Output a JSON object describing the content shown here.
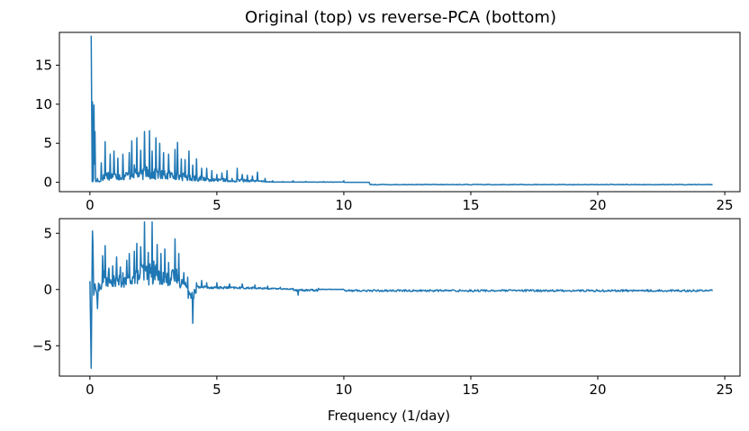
{
  "figure": {
    "title": "Original (top) vs reverse-PCA (bottom)"
  },
  "chart_data": [
    {
      "type": "line",
      "title": "Original (top) vs reverse-PCA (bottom)",
      "xlabel": "",
      "ylabel": "",
      "xlim": [
        -1.2,
        25.6
      ],
      "ylim": [
        -1.2,
        19.2
      ],
      "x_ticks": [
        0,
        5,
        10,
        15,
        20,
        25
      ],
      "y_ticks": [
        0,
        5,
        10,
        15
      ],
      "grid": false,
      "legend": "none",
      "color": "#1f77b4",
      "x_range": [
        0,
        24.5
      ],
      "series": [
        {
          "peaks": [
            [
              0.05,
              18.7
            ],
            [
              0.09,
              0.1
            ],
            [
              0.1,
              10.3
            ],
            [
              0.14,
              0.5
            ],
            [
              0.16,
              9.9
            ],
            [
              0.2,
              6.5
            ],
            [
              0.3,
              0.5
            ],
            [
              0.45,
              2.5
            ],
            [
              0.6,
              5.2
            ],
            [
              0.8,
              3.6
            ],
            [
              0.95,
              4.0
            ],
            [
              1.1,
              3.1
            ],
            [
              1.3,
              3.6
            ],
            [
              1.55,
              3.8
            ],
            [
              1.65,
              5.3
            ],
            [
              1.85,
              5.7
            ],
            [
              2.0,
              4.1
            ],
            [
              2.15,
              6.5
            ],
            [
              2.35,
              6.6
            ],
            [
              2.45,
              4.0
            ],
            [
              2.6,
              5.7
            ],
            [
              2.75,
              5.0
            ],
            [
              2.9,
              3.8
            ],
            [
              3.1,
              3.6
            ],
            [
              3.35,
              4.2
            ],
            [
              3.45,
              5.1
            ],
            [
              3.6,
              3.0
            ],
            [
              3.75,
              2.9
            ],
            [
              3.9,
              4.0
            ],
            [
              4.05,
              2.2
            ],
            [
              4.2,
              3.0
            ],
            [
              4.4,
              1.8
            ],
            [
              4.6,
              1.8
            ],
            [
              4.8,
              1.5
            ],
            [
              5.0,
              1.0
            ],
            [
              5.2,
              1.2
            ],
            [
              5.4,
              1.5
            ],
            [
              5.6,
              0.5
            ],
            [
              5.8,
              1.8
            ],
            [
              6.0,
              1.0
            ],
            [
              6.2,
              0.9
            ],
            [
              6.4,
              0.8
            ],
            [
              6.6,
              1.3
            ],
            [
              6.9,
              0.5
            ],
            [
              7.2,
              0.2
            ],
            [
              7.6,
              0.1
            ],
            [
              8.0,
              0.2
            ],
            [
              8.5,
              0.1
            ],
            [
              9.2,
              0.1
            ],
            [
              10.0,
              0.2
            ],
            [
              11.0,
              0.0
            ]
          ],
          "tail_value": -0.3
        }
      ]
    },
    {
      "type": "line",
      "title": "",
      "xlabel": "Frequency (1/day)",
      "ylabel": "",
      "xlim": [
        -1.2,
        25.6
      ],
      "ylim": [
        -7.7,
        6.3
      ],
      "x_ticks": [
        0,
        5,
        10,
        15,
        20,
        25
      ],
      "y_ticks": [
        -5,
        0,
        5
      ],
      "grid": false,
      "legend": "none",
      "color": "#1f77b4",
      "x_range": [
        0,
        24.5
      ],
      "series": [
        {
          "peaks": [
            [
              0.0,
              0.7
            ],
            [
              0.02,
              -2.0
            ],
            [
              0.05,
              -7.0
            ],
            [
              0.08,
              0.4
            ],
            [
              0.1,
              5.2
            ],
            [
              0.12,
              4.2
            ],
            [
              0.15,
              -0.5
            ],
            [
              0.2,
              0.5
            ],
            [
              0.3,
              -1.7
            ],
            [
              0.5,
              3.0
            ],
            [
              0.6,
              3.9
            ],
            [
              0.75,
              1.9
            ],
            [
              0.9,
              2.1
            ],
            [
              1.05,
              2.9
            ],
            [
              1.2,
              2.0
            ],
            [
              1.3,
              1.5
            ],
            [
              1.45,
              2.6
            ],
            [
              1.55,
              3.2
            ],
            [
              1.75,
              3.4
            ],
            [
              1.85,
              4.1
            ],
            [
              2.0,
              3.8
            ],
            [
              2.15,
              6.0
            ],
            [
              2.3,
              3.3
            ],
            [
              2.45,
              6.0
            ],
            [
              2.65,
              4.0
            ],
            [
              2.8,
              3.2
            ],
            [
              2.95,
              3.6
            ],
            [
              3.1,
              2.4
            ],
            [
              3.35,
              4.5
            ],
            [
              3.5,
              3.2
            ],
            [
              3.7,
              1.5
            ],
            [
              3.85,
              1.1
            ],
            [
              4.05,
              -3.0
            ],
            [
              4.2,
              0.6
            ],
            [
              4.4,
              0.8
            ],
            [
              4.6,
              0.6
            ],
            [
              5.0,
              0.6
            ],
            [
              5.5,
              0.5
            ],
            [
              6.0,
              0.5
            ],
            [
              6.5,
              0.4
            ],
            [
              7.0,
              0.3
            ],
            [
              7.5,
              0.2
            ],
            [
              8.0,
              0.1
            ],
            [
              8.2,
              -0.5
            ],
            [
              9.0,
              0.1
            ],
            [
              10.0,
              0.0
            ]
          ],
          "tail_value": -0.1
        }
      ]
    }
  ]
}
